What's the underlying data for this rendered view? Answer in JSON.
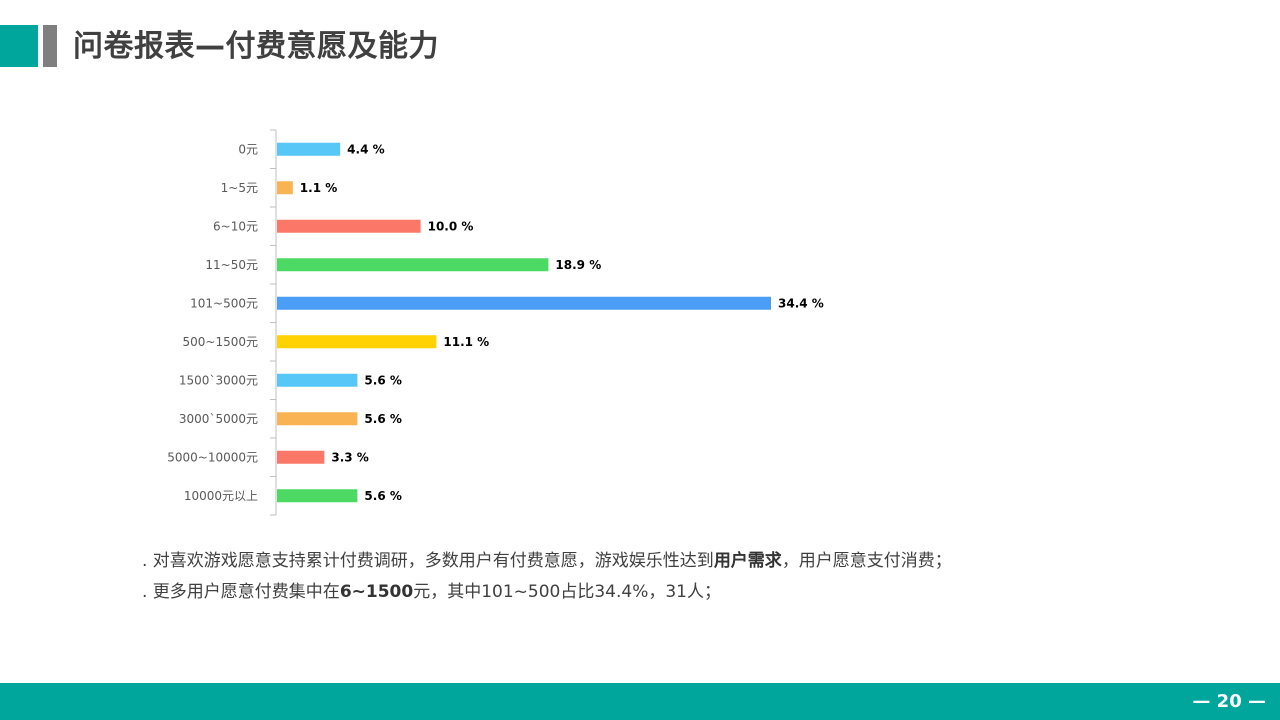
{
  "header": {
    "title": "问卷报表—付费意愿及能力"
  },
  "chart_data": {
    "type": "bar",
    "orientation": "horizontal",
    "categories": [
      "0元",
      "1~5元",
      "6~10元",
      "11~50元",
      "101~500元",
      "500~1500元",
      "1500`3000元",
      "3000`5000元",
      "5000~10000元",
      "10000元以上"
    ],
    "values": [
      4.4,
      1.1,
      10.0,
      18.9,
      34.4,
      11.1,
      5.6,
      5.6,
      3.3,
      5.6
    ],
    "value_labels": [
      "4.4 %",
      "1.1 %",
      "10.0 %",
      "18.9 %",
      "34.4 %",
      "11.1 %",
      "5.6 %",
      "5.6 %",
      "3.3 %",
      "5.6 %"
    ],
    "colors": [
      "#56c7f7",
      "#f9b353",
      "#fb7869",
      "#4cd964",
      "#4b9ef5",
      "#fed203",
      "#56c7f7",
      "#f9b353",
      "#fb7869",
      "#4cd964"
    ],
    "xlim": [
      0,
      34.4
    ],
    "grid": false,
    "legend": "none"
  },
  "notes": {
    "line1": {
      "prefix": ". 对喜欢游戏愿意支持累计付费调研，多数用户有付费意愿，游戏娱乐性达到",
      "bold": "用户需求",
      "suffix": "，用户愿意支付消费；"
    },
    "line2": {
      "prefix": ". 更多用户愿意付费集中在",
      "bold": "6~1500",
      "suffix": "元，其中101~500占比34.4%，31人；"
    }
  },
  "footer": {
    "page_number": "— 20 —"
  },
  "colors": {
    "accent": "#00a59c",
    "title": "#404040",
    "accent_secondary": "#7f7f7f"
  }
}
